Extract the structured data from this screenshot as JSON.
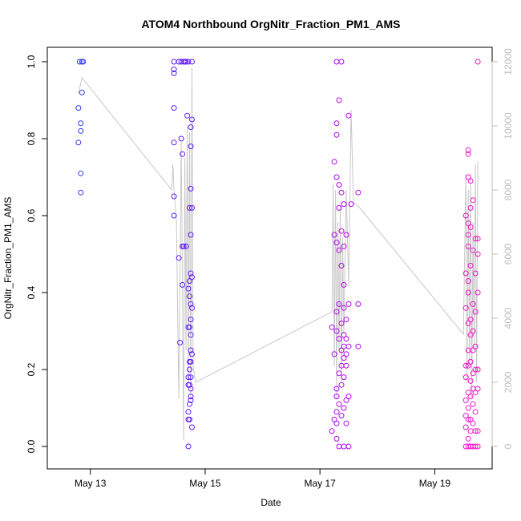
{
  "chart_data": {
    "type": "scatter",
    "title": "ATOM4 Northbound OrgNitr_Fraction_PM1_AMS",
    "xlabel": "Date",
    "ylabel": "OrgNitr_Fraction_PM1_AMS",
    "x_ticks": [
      "May 13",
      "May 15",
      "May 17",
      "May 19"
    ],
    "xlim": [
      "2016-05-12T06:00",
      "2016-05-20T00:00"
    ],
    "y_ticks": [
      "0.0",
      "0.2",
      "0.4",
      "0.6",
      "0.8",
      "1.0"
    ],
    "ylim": [
      0,
      1
    ],
    "y2_ticks": [
      "0",
      "2000",
      "4000",
      "6000",
      "8000",
      "10000",
      "12000"
    ],
    "y2lim": [
      0,
      12000
    ],
    "colors": {
      "point_start": "#1e46f0",
      "point_mid": "#8c00ff",
      "point_end": "#ff14c8",
      "altitude_line": "#c8c8c8",
      "right_axis": "#bdbdbd"
    },
    "series": [
      {
        "marker": "open-circle",
        "color_scale": "blue-to-magenta by time",
        "points": [
          [
            "2016-05-12T19:00",
            0.88
          ],
          [
            "2016-05-12T19:00",
            0.79
          ],
          [
            "2016-05-12T19:30",
            1.0
          ],
          [
            "2016-05-12T20:00",
            0.84
          ],
          [
            "2016-05-12T20:00",
            0.82
          ],
          [
            "2016-05-12T20:00",
            0.71
          ],
          [
            "2016-05-12T20:00",
            0.66
          ],
          [
            "2016-05-12T20:30",
            0.92
          ],
          [
            "2016-05-12T20:30",
            1.0
          ],
          [
            "2016-05-12T21:00",
            1.0
          ],
          [
            "2016-05-14T11:00",
            1.0
          ],
          [
            "2016-05-14T11:00",
            0.98
          ],
          [
            "2016-05-14T11:00",
            0.97
          ],
          [
            "2016-05-14T11:00",
            0.88
          ],
          [
            "2016-05-14T11:00",
            0.79
          ],
          [
            "2016-05-14T11:00",
            0.65
          ],
          [
            "2016-05-14T11:00",
            0.6
          ],
          [
            "2016-05-14T13:00",
            1.0
          ],
          [
            "2016-05-14T13:00",
            0.49
          ],
          [
            "2016-05-14T13:30",
            0.27
          ],
          [
            "2016-05-14T14:00",
            1.0
          ],
          [
            "2016-05-14T14:00",
            0.8
          ],
          [
            "2016-05-14T14:30",
            0.76
          ],
          [
            "2016-05-14T14:30",
            0.52
          ],
          [
            "2016-05-14T14:30",
            0.42
          ],
          [
            "2016-05-14T15:00",
            1.0
          ],
          [
            "2016-05-14T15:00",
            0.52
          ],
          [
            "2016-05-14T15:30",
            1.0
          ],
          [
            "2016-05-14T16:00",
            1.0
          ],
          [
            "2016-05-14T16:00",
            0.52
          ],
          [
            "2016-05-14T16:30",
            0.86
          ],
          [
            "2016-05-14T17:00",
            1.0
          ],
          [
            "2016-05-14T17:00",
            0.41
          ],
          [
            "2016-05-14T17:00",
            0.31
          ],
          [
            "2016-05-14T17:00",
            0.18
          ],
          [
            "2016-05-14T17:00",
            0.16
          ],
          [
            "2016-05-14T17:00",
            0.09
          ],
          [
            "2016-05-14T17:00",
            0.07
          ],
          [
            "2016-05-14T17:00",
            0.0
          ],
          [
            "2016-05-14T17:30",
            0.62
          ],
          [
            "2016-05-14T17:30",
            0.43
          ],
          [
            "2016-05-14T17:30",
            0.39
          ],
          [
            "2016-05-14T17:30",
            0.31
          ],
          [
            "2016-05-14T17:30",
            0.22
          ],
          [
            "2016-05-14T17:30",
            0.2
          ],
          [
            "2016-05-14T17:30",
            0.16
          ],
          [
            "2016-05-14T17:30",
            0.11
          ],
          [
            "2016-05-14T17:30",
            0.07
          ],
          [
            "2016-05-14T18:00",
            0.83
          ],
          [
            "2016-05-14T18:00",
            0.78
          ],
          [
            "2016-05-14T18:00",
            0.67
          ],
          [
            "2016-05-14T18:00",
            0.55
          ],
          [
            "2016-05-14T18:00",
            0.45
          ],
          [
            "2016-05-14T18:00",
            0.37
          ],
          [
            "2016-05-14T18:00",
            0.33
          ],
          [
            "2016-05-14T18:00",
            0.29
          ],
          [
            "2016-05-14T18:00",
            0.25
          ],
          [
            "2016-05-14T18:00",
            0.22
          ],
          [
            "2016-05-14T18:00",
            0.18
          ],
          [
            "2016-05-14T18:00",
            0.15
          ],
          [
            "2016-05-14T18:00",
            0.13
          ],
          [
            "2016-05-14T18:00",
            0.12
          ],
          [
            "2016-05-14T18:30",
            1.0
          ],
          [
            "2016-05-14T18:30",
            0.85
          ],
          [
            "2016-05-14T18:30",
            0.62
          ],
          [
            "2016-05-14T18:30",
            0.44
          ],
          [
            "2016-05-14T18:30",
            0.36
          ],
          [
            "2016-05-14T18:30",
            0.24
          ],
          [
            "2016-05-14T18:30",
            0.05
          ],
          [
            "2016-05-17T05:00",
            0.31
          ],
          [
            "2016-05-17T05:00",
            0.04
          ],
          [
            "2016-05-17T06:00",
            0.74
          ],
          [
            "2016-05-17T06:00",
            0.55
          ],
          [
            "2016-05-17T06:00",
            0.24
          ],
          [
            "2016-05-17T06:00",
            0.07
          ],
          [
            "2016-05-17T07:00",
            1.0
          ],
          [
            "2016-05-17T07:00",
            0.84
          ],
          [
            "2016-05-17T07:00",
            0.81
          ],
          [
            "2016-05-17T07:00",
            0.7
          ],
          [
            "2016-05-17T07:00",
            0.53
          ],
          [
            "2016-05-17T07:00",
            0.35
          ],
          [
            "2016-05-17T07:00",
            0.3
          ],
          [
            "2016-05-17T07:00",
            0.15
          ],
          [
            "2016-05-17T07:00",
            0.13
          ],
          [
            "2016-05-17T07:00",
            0.09
          ],
          [
            "2016-05-17T07:00",
            0.06
          ],
          [
            "2016-05-17T07:00",
            0.02
          ],
          [
            "2016-05-17T08:00",
            0.9
          ],
          [
            "2016-05-17T08:00",
            0.68
          ],
          [
            "2016-05-17T08:00",
            0.62
          ],
          [
            "2016-05-17T08:00",
            0.51
          ],
          [
            "2016-05-17T08:00",
            0.37
          ],
          [
            "2016-05-17T08:00",
            0.28
          ],
          [
            "2016-05-17T08:00",
            0.19
          ],
          [
            "2016-05-17T08:00",
            0.11
          ],
          [
            "2016-05-17T08:00",
            0.0
          ],
          [
            "2016-05-17T09:00",
            1.0
          ],
          [
            "2016-05-17T09:00",
            0.66
          ],
          [
            "2016-05-17T09:00",
            0.56
          ],
          [
            "2016-05-17T09:00",
            0.47
          ],
          [
            "2016-05-17T09:00",
            0.32
          ],
          [
            "2016-05-17T09:00",
            0.25
          ],
          [
            "2016-05-17T09:00",
            0.21
          ],
          [
            "2016-05-17T09:00",
            0.16
          ],
          [
            "2016-05-17T09:00",
            0.08
          ],
          [
            "2016-05-17T10:00",
            0.63
          ],
          [
            "2016-05-17T10:00",
            0.52
          ],
          [
            "2016-05-17T10:00",
            0.42
          ],
          [
            "2016-05-17T10:00",
            0.36
          ],
          [
            "2016-05-17T10:00",
            0.29
          ],
          [
            "2016-05-17T10:00",
            0.26
          ],
          [
            "2016-05-17T10:00",
            0.23
          ],
          [
            "2016-05-17T10:00",
            0.18
          ],
          [
            "2016-05-17T10:00",
            0.1
          ],
          [
            "2016-05-17T10:00",
            0.0
          ],
          [
            "2016-05-17T11:00",
            0.55
          ],
          [
            "2016-05-17T11:00",
            0.33
          ],
          [
            "2016-05-17T11:00",
            0.28
          ],
          [
            "2016-05-17T11:00",
            0.24
          ],
          [
            "2016-05-17T11:00",
            0.21
          ],
          [
            "2016-05-17T11:00",
            0.12
          ],
          [
            "2016-05-17T11:00",
            0.06
          ],
          [
            "2016-05-17T12:00",
            0.86
          ],
          [
            "2016-05-17T12:00",
            0.37
          ],
          [
            "2016-05-17T12:00",
            0.26
          ],
          [
            "2016-05-17T12:00",
            0.13
          ],
          [
            "2016-05-17T12:00",
            0.0
          ],
          [
            "2016-05-17T13:00",
            0.63
          ],
          [
            "2016-05-17T16:00",
            0.66
          ],
          [
            "2016-05-17T16:00",
            0.37
          ],
          [
            "2016-05-17T16:00",
            0.26
          ],
          [
            "2016-05-19T13:00",
            0.6
          ],
          [
            "2016-05-19T13:00",
            0.45
          ],
          [
            "2016-05-19T13:00",
            0.36
          ],
          [
            "2016-05-19T13:00",
            0.21
          ],
          [
            "2016-05-19T13:00",
            0.18
          ],
          [
            "2016-05-19T13:00",
            0.12
          ],
          [
            "2016-05-19T13:00",
            0.08
          ],
          [
            "2016-05-19T13:00",
            0.05
          ],
          [
            "2016-05-19T13:00",
            0.0
          ],
          [
            "2016-05-19T14:00",
            0.77
          ],
          [
            "2016-05-19T14:00",
            0.76
          ],
          [
            "2016-05-19T14:00",
            0.7
          ],
          [
            "2016-05-19T14:00",
            0.58
          ],
          [
            "2016-05-19T14:00",
            0.55
          ],
          [
            "2016-05-19T14:00",
            0.52
          ],
          [
            "2016-05-19T14:00",
            0.43
          ],
          [
            "2016-05-19T14:00",
            0.4
          ],
          [
            "2016-05-19T14:00",
            0.32
          ],
          [
            "2016-05-19T14:00",
            0.25
          ],
          [
            "2016-05-19T14:00",
            0.21
          ],
          [
            "2016-05-19T14:00",
            0.14
          ],
          [
            "2016-05-19T14:00",
            0.1
          ],
          [
            "2016-05-19T14:00",
            0.07
          ],
          [
            "2016-05-19T14:00",
            0.02
          ],
          [
            "2016-05-19T14:00",
            0.0
          ],
          [
            "2016-05-19T15:00",
            0.69
          ],
          [
            "2016-05-19T15:00",
            0.62
          ],
          [
            "2016-05-19T15:00",
            0.57
          ],
          [
            "2016-05-19T15:00",
            0.47
          ],
          [
            "2016-05-19T15:00",
            0.33
          ],
          [
            "2016-05-19T15:00",
            0.29
          ],
          [
            "2016-05-19T15:00",
            0.22
          ],
          [
            "2016-05-19T15:00",
            0.17
          ],
          [
            "2016-05-19T15:00",
            0.13
          ],
          [
            "2016-05-19T15:00",
            0.07
          ],
          [
            "2016-05-19T15:00",
            0.04
          ],
          [
            "2016-05-19T15:00",
            0.0
          ],
          [
            "2016-05-19T16:00",
            0.64
          ],
          [
            "2016-05-19T16:00",
            0.51
          ],
          [
            "2016-05-19T16:00",
            0.37
          ],
          [
            "2016-05-19T16:00",
            0.3
          ],
          [
            "2016-05-19T16:00",
            0.25
          ],
          [
            "2016-05-19T16:00",
            0.19
          ],
          [
            "2016-05-19T16:00",
            0.15
          ],
          [
            "2016-05-19T16:00",
            0.11
          ],
          [
            "2016-05-19T16:00",
            0.06
          ],
          [
            "2016-05-19T16:00",
            0.0
          ],
          [
            "2016-05-19T17:00",
            0.54
          ],
          [
            "2016-05-19T17:00",
            0.45
          ],
          [
            "2016-05-19T17:00",
            0.35
          ],
          [
            "2016-05-19T17:00",
            0.26
          ],
          [
            "2016-05-19T17:00",
            0.2
          ],
          [
            "2016-05-19T17:00",
            0.14
          ],
          [
            "2016-05-19T17:00",
            0.09
          ],
          [
            "2016-05-19T17:00",
            0.04
          ],
          [
            "2016-05-19T17:00",
            0.0
          ],
          [
            "2016-05-19T18:00",
            1.0
          ],
          [
            "2016-05-19T18:00",
            0.54
          ],
          [
            "2016-05-19T18:00",
            0.5
          ],
          [
            "2016-05-19T18:00",
            0.4
          ],
          [
            "2016-05-19T18:00",
            0.2
          ],
          [
            "2016-05-19T18:00",
            0.15
          ],
          [
            "2016-05-19T18:00",
            0.04
          ],
          [
            "2016-05-19T18:00",
            0.0
          ]
        ]
      },
      {
        "marker": "line",
        "axis": "right",
        "color_key": "altitude_line",
        "points": [
          [
            "2016-05-12T19:00",
            11000
          ],
          [
            "2016-05-12T20:30",
            11500
          ],
          [
            "2016-05-14T10:00",
            8000
          ],
          [
            "2016-05-14T10:30",
            8800
          ],
          [
            "2016-05-14T11:00",
            8000
          ],
          [
            "2016-05-14T12:00",
            7000
          ],
          [
            "2016-05-14T13:00",
            1500
          ],
          [
            "2016-05-14T14:00",
            9500
          ],
          [
            "2016-05-14T15:00",
            200
          ],
          [
            "2016-05-14T15:30",
            9000
          ],
          [
            "2016-05-14T16:00",
            3000
          ],
          [
            "2016-05-14T16:30",
            10000
          ],
          [
            "2016-05-14T17:00",
            2000
          ],
          [
            "2016-05-14T17:30",
            9800
          ],
          [
            "2016-05-14T18:00",
            1500
          ],
          [
            "2016-05-14T18:30",
            11800
          ],
          [
            "2016-05-14T19:00",
            2500
          ],
          [
            "2016-05-14T20:00",
            2000
          ],
          [
            "2016-05-17T05:00",
            4200
          ],
          [
            "2016-05-17T05:30",
            8200
          ],
          [
            "2016-05-17T06:00",
            2500
          ],
          [
            "2016-05-17T06:30",
            8000
          ],
          [
            "2016-05-17T07:00",
            1500
          ],
          [
            "2016-05-17T07:30",
            7000
          ],
          [
            "2016-05-17T08:00",
            3000
          ],
          [
            "2016-05-17T08:30",
            7500
          ],
          [
            "2016-05-17T09:00",
            2000
          ],
          [
            "2016-05-17T09:30",
            6500
          ],
          [
            "2016-05-17T10:00",
            3500
          ],
          [
            "2016-05-17T11:00",
            8000
          ],
          [
            "2016-05-17T12:00",
            5000
          ],
          [
            "2016-05-17T13:00",
            10500
          ],
          [
            "2016-05-17T14:00",
            7600
          ],
          [
            "2016-05-17T16:00",
            7500
          ],
          [
            "2016-05-19T12:00",
            3500
          ],
          [
            "2016-05-19T13:00",
            8500
          ],
          [
            "2016-05-19T13:30",
            2000
          ],
          [
            "2016-05-19T14:00",
            8000
          ],
          [
            "2016-05-19T14:30",
            2500
          ],
          [
            "2016-05-19T15:00",
            8500
          ],
          [
            "2016-05-19T15:30",
            1500
          ],
          [
            "2016-05-19T16:00",
            7000
          ],
          [
            "2016-05-19T16:30",
            3000
          ],
          [
            "2016-05-19T17:00",
            8800
          ],
          [
            "2016-05-19T17:30",
            2000
          ],
          [
            "2016-05-19T18:00",
            8900
          ]
        ]
      }
    ]
  }
}
